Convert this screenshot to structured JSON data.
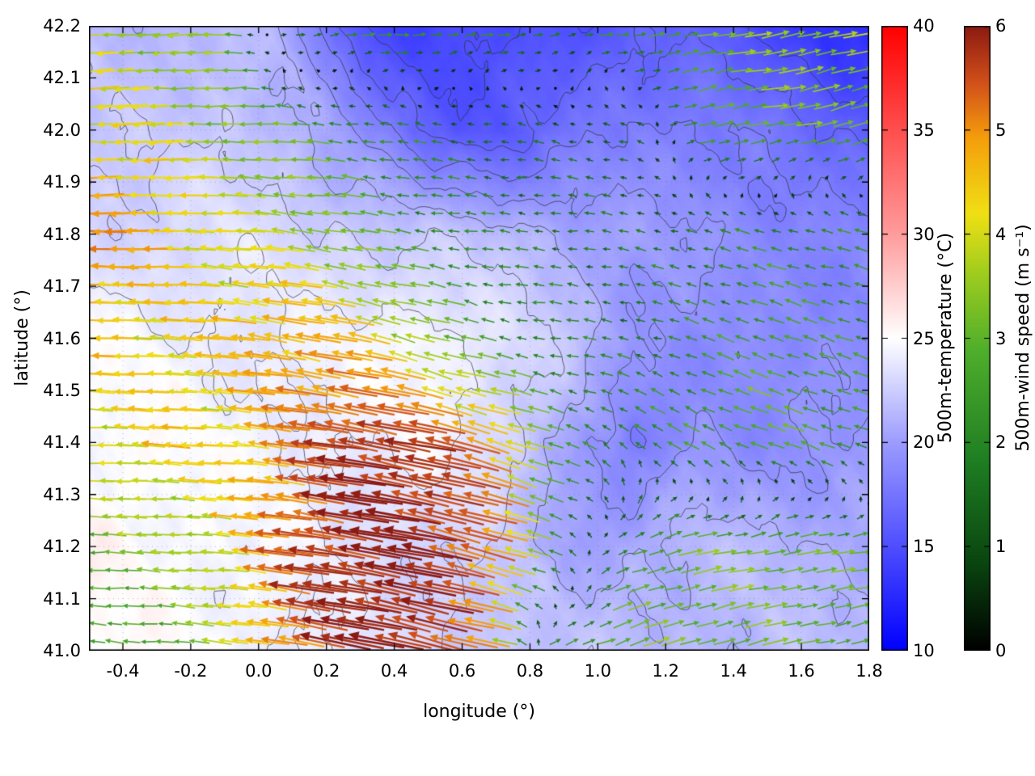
{
  "chart_data": {
    "type": "heatmap",
    "subtype": "geographic temperature field with contour lines and wind-vector overlay",
    "title": "",
    "xlabel": "longitude (°)",
    "ylabel": "latitude (°)",
    "x_range": [
      -0.5,
      1.8
    ],
    "y_range": [
      41.0,
      42.2
    ],
    "x_ticks": [
      "-0.4",
      "-0.2",
      "0.0",
      "0.2",
      "0.4",
      "0.6",
      "0.8",
      "1.0",
      "1.2",
      "1.4",
      "1.6",
      "1.8"
    ],
    "y_ticks": [
      "41.0",
      "41.1",
      "41.2",
      "41.3",
      "41.4",
      "41.5",
      "41.6",
      "41.7",
      "41.8",
      "41.9",
      "42.0",
      "42.1",
      "42.2"
    ],
    "grid": "dotted",
    "contour_color": "#2e2e38",
    "contour_levels": [
      15,
      16.5,
      18,
      19.5,
      21,
      22.5,
      24
    ],
    "temperature_field": {
      "units": "°C",
      "x_nodes": [
        -0.5,
        -0.3,
        -0.1,
        0.1,
        0.3,
        0.5,
        0.7,
        0.9,
        1.1,
        1.3,
        1.5,
        1.7
      ],
      "y_nodes": [
        41.0,
        41.2,
        41.4,
        41.6,
        41.8,
        42.0,
        42.2
      ],
      "values": [
        [
          25.0,
          25.0,
          24.8,
          24.2,
          23.4,
          23.0,
          22.4,
          21.8,
          21.6,
          21.5,
          21.6,
          21.5
        ],
        [
          25.4,
          25.0,
          24.6,
          24.2,
          23.6,
          23.0,
          22.2,
          20.2,
          21.0,
          21.4,
          21.4,
          21.0
        ],
        [
          25.0,
          25.0,
          24.6,
          24.4,
          24.0,
          24.4,
          23.4,
          21.0,
          17.5,
          19.6,
          19.0,
          19.4
        ],
        [
          24.6,
          24.4,
          24.0,
          24.0,
          24.4,
          25.0,
          23.6,
          22.0,
          20.0,
          19.0,
          18.6,
          19.0
        ],
        [
          23.2,
          23.0,
          23.4,
          23.0,
          22.6,
          22.0,
          21.6,
          21.0,
          20.0,
          19.4,
          19.0,
          18.6
        ],
        [
          22.0,
          22.0,
          22.4,
          21.6,
          19.0,
          16.2,
          15.6,
          17.0,
          18.0,
          18.4,
          17.6,
          16.0
        ],
        [
          21.6,
          21.4,
          22.0,
          20.0,
          15.0,
          14.2,
          14.6,
          15.0,
          16.4,
          16.0,
          14.2,
          13.2
        ]
      ]
    },
    "wind_field": {
      "units": "m s⁻¹",
      "x_nodes": [
        -0.5,
        -0.3,
        -0.1,
        0.1,
        0.3,
        0.5,
        0.7,
        0.9,
        1.1,
        1.3,
        1.5,
        1.7
      ],
      "y_nodes": [
        41.0,
        41.2,
        41.4,
        41.6,
        41.8,
        42.0,
        42.2
      ],
      "u": [
        [
          -2.2,
          -2.6,
          -3.6,
          -5.2,
          -5.8,
          -5.6,
          -4.2,
          2.6,
          3.0,
          3.0,
          3.0,
          2.8
        ],
        [
          -3.0,
          -3.4,
          -4.0,
          -5.4,
          -5.9,
          -5.8,
          -5.0,
          -2.0,
          2.4,
          3.2,
          3.2,
          3.0
        ],
        [
          -4.0,
          -4.4,
          -4.2,
          -5.0,
          -5.8,
          -5.5,
          -4.8,
          -2.2,
          -1.6,
          -2.4,
          -2.8,
          -2.5
        ],
        [
          -4.5,
          -4.2,
          -4.4,
          -4.8,
          -4.4,
          -3.4,
          -2.2,
          -1.9,
          -1.8,
          -2.0,
          -2.6,
          -2.2
        ],
        [
          -5.1,
          -4.7,
          -4.0,
          -3.7,
          -3.0,
          -2.2,
          -1.9,
          -1.8,
          -1.5,
          -1.8,
          -2.0,
          -2.2
        ],
        [
          -4.2,
          -4.0,
          -3.5,
          -3.1,
          -2.2,
          -1.8,
          -1.5,
          -1.3,
          -1.5,
          2.4,
          3.1,
          3.0
        ],
        [
          -3.8,
          -3.5,
          -3.2,
          2.0,
          2.5,
          2.8,
          2.2,
          2.0,
          2.5,
          3.0,
          3.5,
          3.6
        ]
      ],
      "v": [
        [
          0.3,
          0.2,
          0.4,
          0.9,
          1.2,
          1.4,
          1.0,
          1.0,
          1.1,
          0.9,
          0.8,
          0.6
        ],
        [
          0.1,
          0.2,
          0.3,
          0.8,
          1.0,
          1.2,
          1.4,
          0.8,
          0.9,
          0.6,
          0.5,
          0.5
        ],
        [
          0.1,
          0.3,
          0.3,
          0.7,
          1.0,
          1.2,
          1.5,
          0.8,
          1.4,
          1.1,
          1.0,
          0.8
        ],
        [
          0.2,
          0.2,
          0.5,
          0.8,
          1.0,
          1.0,
          0.5,
          0.3,
          0.4,
          0.8,
          1.0,
          0.8
        ],
        [
          0.0,
          0.0,
          0.3,
          0.5,
          0.5,
          0.3,
          0.2,
          0.2,
          0.3,
          0.5,
          0.5,
          0.5
        ],
        [
          -0.2,
          -0.2,
          0.0,
          0.2,
          0.3,
          0.3,
          0.2,
          0.3,
          0.4,
          0.7,
          0.5,
          0.8
        ],
        [
          -0.3,
          -0.3,
          0.0,
          0.3,
          0.2,
          0.2,
          0.3,
          0.3,
          0.4,
          0.5,
          0.6,
          0.8
        ]
      ]
    },
    "colorbars": [
      {
        "label": "500m-temperature (°C)",
        "range": [
          10,
          40
        ],
        "ticks": [
          10,
          15,
          20,
          25,
          30,
          35,
          40
        ],
        "stops": [
          [
            0.0,
            "#0000ff"
          ],
          [
            0.17,
            "#5050ff"
          ],
          [
            0.33,
            "#9a9aff"
          ],
          [
            0.5,
            "#ffffff"
          ],
          [
            0.67,
            "#ff9a9a"
          ],
          [
            0.83,
            "#ff5050"
          ],
          [
            1.0,
            "#ff0000"
          ]
        ]
      },
      {
        "label": "500m-wind speed (m s⁻¹)",
        "range": [
          0,
          6
        ],
        "ticks": [
          0,
          1,
          2,
          3,
          4,
          5,
          6
        ],
        "stops": [
          [
            0.0,
            "#000000"
          ],
          [
            0.14,
            "#0a4510"
          ],
          [
            0.3,
            "#1e7d22"
          ],
          [
            0.48,
            "#4fae2c"
          ],
          [
            0.6,
            "#9ccc1e"
          ],
          [
            0.7,
            "#f0e014"
          ],
          [
            0.82,
            "#f59e0c"
          ],
          [
            0.91,
            "#d14f1a"
          ],
          [
            1.0,
            "#8c1a12"
          ]
        ]
      }
    ]
  }
}
